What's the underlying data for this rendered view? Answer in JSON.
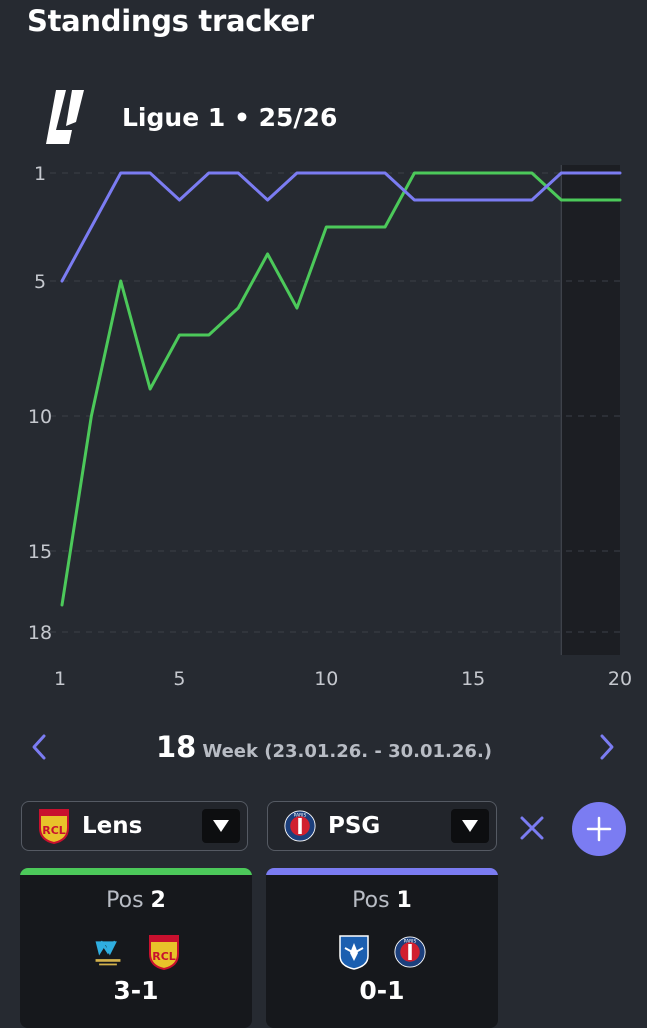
{
  "header": {
    "title": "Standings tracker"
  },
  "league": {
    "name": "Ligue 1 • 25/26",
    "logo_icon": "ligue1-logo-icon"
  },
  "chart_data": {
    "type": "line",
    "title": "",
    "xlabel": "",
    "ylabel": "",
    "x": [
      1,
      2,
      3,
      4,
      5,
      6,
      7,
      8,
      9,
      10,
      11,
      12,
      13,
      14,
      15,
      16,
      17,
      18,
      19,
      20
    ],
    "xlim": [
      1,
      20
    ],
    "ylim": [
      18,
      1
    ],
    "y_inverted": true,
    "x_ticks": [
      1,
      5,
      10,
      15,
      20
    ],
    "y_ticks": [
      1,
      5,
      10,
      15,
      18
    ],
    "grid": "horizontal dashed",
    "highlight_week": 18,
    "series": [
      {
        "team": "Lens",
        "color": "#4cc95a",
        "values": [
          17,
          10,
          5,
          9,
          7,
          7,
          6,
          4,
          6,
          3,
          3,
          3,
          1,
          1,
          1,
          1,
          1,
          2,
          2,
          2
        ]
      },
      {
        "team": "PSG",
        "color": "#7b7cf2",
        "values": [
          5,
          3,
          1,
          1,
          2,
          1,
          1,
          2,
          1,
          1,
          1,
          1,
          2,
          2,
          2,
          2,
          2,
          1,
          1,
          1
        ]
      }
    ]
  },
  "week_nav": {
    "number": "18",
    "text": "Week (23.01.26. - 30.01.26.)",
    "prev_icon": "chevron-left-icon",
    "next_icon": "chevron-right-icon"
  },
  "selectors": [
    {
      "team": "Lens",
      "crest": "lens-crest-icon",
      "color": "#4cc95a"
    },
    {
      "team": "PSG",
      "crest": "psg-crest-icon",
      "color": "#7b7cf2"
    }
  ],
  "actions": {
    "clear_icon": "close-icon",
    "add_icon": "plus-icon"
  },
  "cards": [
    {
      "pos_label": "Pos",
      "pos_value": "2",
      "home_crest": "marseille-crest-icon",
      "away_crest": "lens-crest-icon",
      "score": "3-1",
      "color": "#4cc95a"
    },
    {
      "pos_label": "Pos",
      "pos_value": "1",
      "home_crest": "auxerre-crest-icon",
      "away_crest": "psg-crest-icon",
      "score": "0-1",
      "color": "#7b7cf2"
    }
  ],
  "colors": {
    "background": "#262a31",
    "card": "#16181c",
    "accent": "#7b7cf2",
    "lens": "#4cc95a"
  }
}
